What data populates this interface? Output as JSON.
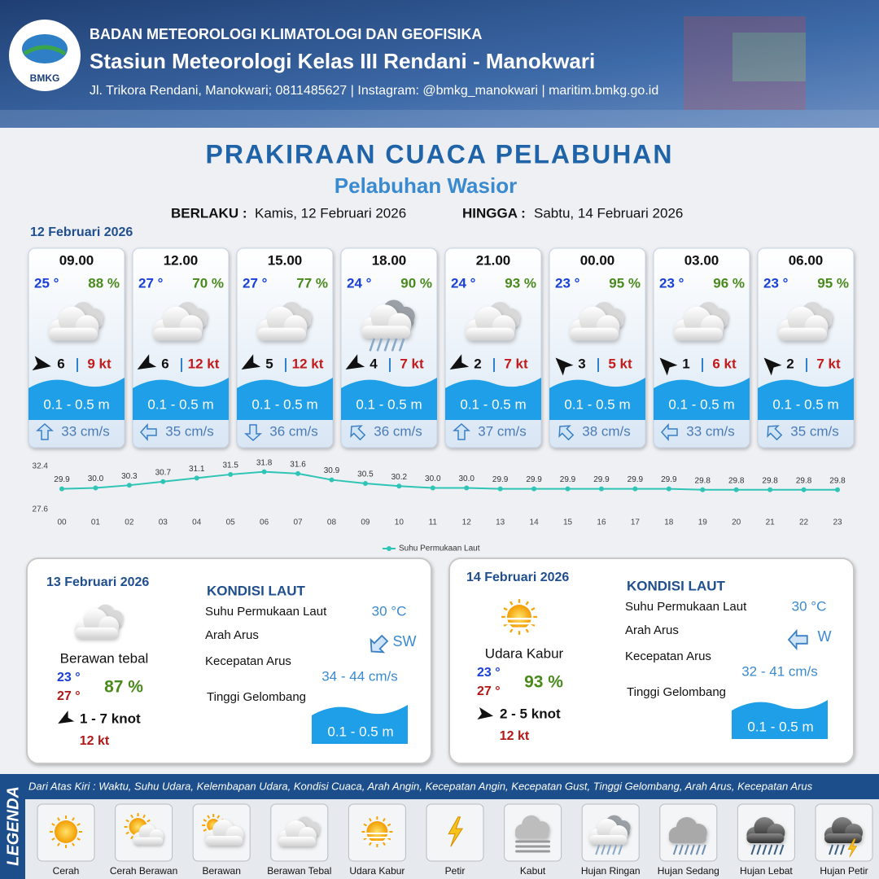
{
  "header": {
    "logo": "BMKG",
    "org": "BADAN METEOROLOGI KLIMATOLOGI DAN GEOFISIKA",
    "station": "Stasiun Meteorologi Kelas III Rendani - Manokwari",
    "address": "Jl. Trikora Rendani, Manokwari; 0811485627 | Instagram: @bmkg_manokwari | maritim.bmkg.go.id"
  },
  "title": "PRAKIRAAN CUACA PELABUHAN",
  "subtitle": "Pelabuhan Wasior",
  "validity": {
    "from_label": "BERLAKU :",
    "from": "Kamis, 12 Februari 2026",
    "to_label": "HINGGA :",
    "to": "Sabtu, 14 Februari 2026"
  },
  "day1_date": "12 Februari 2026",
  "cards": [
    {
      "time": "09.00",
      "temp": "25 °",
      "humidity": "88 %",
      "condition": 3,
      "wind_angle": 10,
      "wind": 6,
      "gust": "9 kt",
      "wave": "0.1 - 0.5 m",
      "current_angle": 270,
      "current": "33 cm/s"
    },
    {
      "time": "12.00",
      "temp": "27 °",
      "humidity": "70 %",
      "condition": 3,
      "wind_angle": 150,
      "wind": 6,
      "gust": "12 kt",
      "wave": "0.1 - 0.5 m",
      "current_angle": 180,
      "current": "35 cm/s"
    },
    {
      "time": "15.00",
      "temp": "27 °",
      "humidity": "77 %",
      "condition": 3,
      "wind_angle": 150,
      "wind": 5,
      "gust": "12 kt",
      "wave": "0.1 - 0.5 m",
      "current_angle": 90,
      "current": "36 cm/s"
    },
    {
      "time": "18.00",
      "temp": "24 °",
      "humidity": "90 %",
      "condition": 7,
      "wind_angle": 150,
      "wind": 4,
      "gust": "7 kt",
      "wave": "0.1 - 0.5 m",
      "current_angle": 225,
      "current": "36 cm/s"
    },
    {
      "time": "21.00",
      "temp": "24 °",
      "humidity": "93 %",
      "condition": 3,
      "wind_angle": 150,
      "wind": 2,
      "gust": "7 kt",
      "wave": "0.1 - 0.5 m",
      "current_angle": 270,
      "current": "37 cm/s"
    },
    {
      "time": "00.00",
      "temp": "23 °",
      "humidity": "95 %",
      "condition": 3,
      "wind_angle": 225,
      "wind": 3,
      "gust": "5 kt",
      "wave": "0.1 - 0.5 m",
      "current_angle": 225,
      "current": "38 cm/s"
    },
    {
      "time": "03.00",
      "temp": "23 °",
      "humidity": "96 %",
      "condition": 3,
      "wind_angle": 225,
      "wind": 1,
      "gust": "6 kt",
      "wave": "0.1 - 0.5 m",
      "current_angle": 180,
      "current": "33 cm/s"
    },
    {
      "time": "06.00",
      "temp": "23 °",
      "humidity": "95 %",
      "condition": 3,
      "wind_angle": 225,
      "wind": 2,
      "gust": "7 kt",
      "wave": "0.1 - 0.5 m",
      "current_angle": 225,
      "current": "35 cm/s"
    }
  ],
  "chart_data": {
    "type": "line",
    "categories": [
      "00",
      "01",
      "02",
      "03",
      "04",
      "05",
      "06",
      "07",
      "08",
      "09",
      "10",
      "11",
      "12",
      "13",
      "14",
      "15",
      "16",
      "17",
      "18",
      "19",
      "20",
      "21",
      "22",
      "23"
    ],
    "series": [
      {
        "name": "Suhu Permukaan Laut",
        "color": "#2ec4b6",
        "values": [
          29.9,
          30.0,
          30.3,
          30.7,
          31.1,
          31.5,
          31.8,
          31.6,
          30.9,
          30.5,
          30.2,
          30.0,
          30.0,
          29.9,
          29.9,
          29.9,
          29.9,
          29.9,
          29.9,
          29.8,
          29.8,
          29.8,
          29.8,
          29.8
        ],
        "value_labels": [
          "29.9",
          "30.0",
          "30.3",
          "30.7",
          "31.1",
          "31.5",
          "31.8",
          "31.6",
          "30.9",
          "30.5",
          "30.2",
          "30.0",
          "30.0",
          "29.9",
          "29.9",
          "29.9",
          "29.9",
          "29.9",
          "29.9",
          "29.8",
          "29.8",
          "29.8",
          "29.8",
          "29.8"
        ]
      }
    ],
    "ylim": [
      27.6,
      32.4
    ],
    "yticks": [
      27.6,
      32.4
    ],
    "grid": false,
    "legend": "bottom"
  },
  "days": [
    {
      "date": "13 Februari 2026",
      "condition": 3,
      "condition_text": "Berawan tebal",
      "temp_min": "23 °",
      "temp_max": "27 °",
      "humidity": "87 %",
      "wind_angle": 150,
      "wind": "1 - 7 knot",
      "gust": "12 kt",
      "sea": {
        "title": "KONDISI LAUT",
        "sst_label": "Suhu Permukaan Laut",
        "sst": "30 °C",
        "dir_label": "Arah Arus",
        "current_angle": 135,
        "dir": "SW",
        "speed_label": "Kecepatan Arus",
        "speed": "34 - 44 cm/s",
        "wave_label": "Tinggi Gelombang",
        "wave": "0.1 - 0.5 m"
      }
    },
    {
      "date": "14 Februari 2026",
      "condition": 4,
      "condition_text": "Udara Kabur",
      "temp_min": "23 °",
      "temp_max": "27 °",
      "humidity": "93 %",
      "wind_angle": 10,
      "wind": "2 - 5 knot",
      "gust": "12 kt",
      "sea": {
        "title": "KONDISI LAUT",
        "sst_label": "Suhu Permukaan Laut",
        "sst": "30 °C",
        "dir_label": "Arah Arus",
        "current_angle": 180,
        "dir": "W",
        "speed_label": "Kecepatan Arus",
        "speed": "32 - 41 cm/s",
        "wave_label": "Tinggi Gelombang",
        "wave": "0.1 - 0.5 m"
      }
    }
  ],
  "legend": {
    "title": "LEGENDA",
    "description": "Dari Atas Kiri : Waktu, Suhu Udara, Kelembapan Udara, Kondisi Cuaca, Arah Angin, Kecepatan Angin, Kecepatan Gust, Tinggi Gelombang, Arah Arus, Kecepatan Arus",
    "items": [
      "Cerah",
      "Cerah Berawan",
      "Berawan",
      "Berawan Tebal",
      "Udara Kabur",
      "Petir",
      "Kabut",
      "Hujan Ringan",
      "Hujan Sedang",
      "Hujan Lebat",
      "Hujan Petir"
    ]
  }
}
